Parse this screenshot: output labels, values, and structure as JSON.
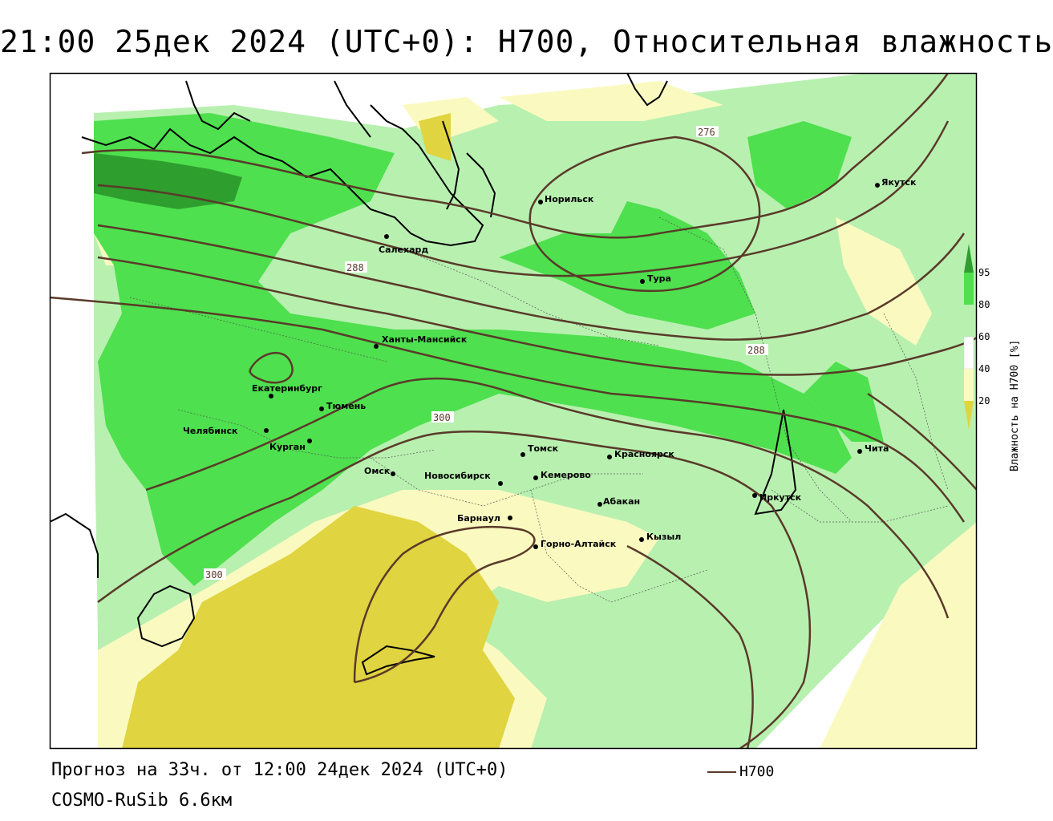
{
  "title": "21:00 25дек 2024 (UTC+0): H700, Относительная влажность",
  "footer": {
    "forecast": "Прогноз на 33ч. от 12:00 24дек 2024 (UTC+0)",
    "model": "COSMO-RuSib 6.6км",
    "legend_line_label": "H700"
  },
  "colorbar": {
    "label": "Влажность на H700 [%]",
    "ticks": [
      "95",
      "80",
      "60",
      "40",
      "20"
    ]
  },
  "contour_labels": [
    "276",
    "288",
    "288",
    "300",
    "300"
  ],
  "cities": [
    "Якутск",
    "Норильск",
    "Салехард",
    "Тура",
    "Ханты-Мансийск",
    "Екатеринбург",
    "Тюмень",
    "Челябинск",
    "Курган",
    "Омск",
    "Новосибирск",
    "Томск",
    "Кемерово",
    "Красноярск",
    "Барнаул",
    "Абакан",
    "Горно-Алтайск",
    "Кызыл",
    "Иркутск",
    "Чита"
  ],
  "colors": {
    "rh_95": "#2e9e2e",
    "rh_80": "#4ee04e",
    "rh_60": "#b8f0b0",
    "rh_40": "#fafac0",
    "rh_20": "#e0d440",
    "contour": "#5a3a2a",
    "coast": "#000000"
  }
}
